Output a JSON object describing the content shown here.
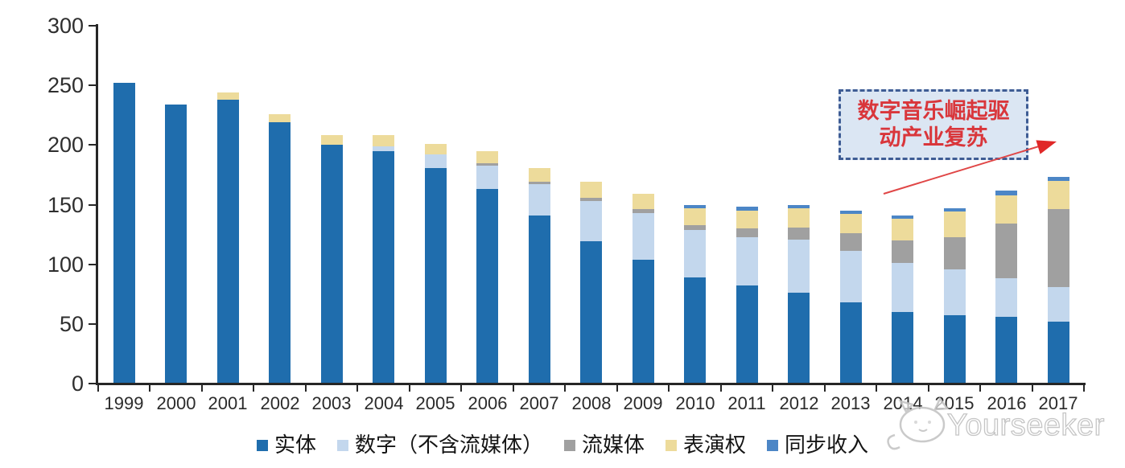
{
  "chart_data": {
    "type": "bar",
    "stacked": true,
    "title": "",
    "xlabel": "",
    "ylabel": "",
    "categories": [
      "1999",
      "2000",
      "2001",
      "2002",
      "2003",
      "2004",
      "2005",
      "2006",
      "2007",
      "2008",
      "2009",
      "2010",
      "2011",
      "2012",
      "2013",
      "2014",
      "2015",
      "2016",
      "2017"
    ],
    "series": [
      {
        "name": "实体",
        "color": "#1f6dad",
        "values": [
          252,
          234,
          238,
          219,
          200,
          195,
          181,
          163,
          141,
          119,
          104,
          89,
          82,
          76,
          68,
          60,
          57,
          56,
          52
        ]
      },
      {
        "name": "数字（不含流媒体）",
        "color": "#c3d7ed",
        "values": [
          0,
          0,
          0,
          0,
          0,
          4,
          11,
          20,
          26,
          34,
          39,
          40,
          41,
          45,
          43,
          41,
          39,
          32,
          29
        ]
      },
      {
        "name": "流媒体",
        "color": "#a0a0a0",
        "values": [
          0,
          0,
          0,
          0,
          0,
          0,
          0,
          2,
          2,
          3,
          3,
          4,
          7,
          10,
          15,
          19,
          27,
          46,
          65
        ]
      },
      {
        "name": "表演权",
        "color": "#eddb9b",
        "values": [
          0,
          0,
          6,
          7,
          8,
          9,
          9,
          10,
          12,
          13,
          13,
          14,
          15,
          16,
          16,
          18,
          21,
          24,
          24
        ]
      },
      {
        "name": "同步收入",
        "color": "#4c86c6",
        "values": [
          0,
          0,
          0,
          0,
          0,
          0,
          0,
          0,
          0,
          0,
          0,
          3,
          3,
          3,
          3,
          3,
          3,
          4,
          3
        ]
      }
    ],
    "y_ticks": [
      0,
      50,
      100,
      150,
      200,
      250,
      300
    ],
    "ylim": [
      0,
      300
    ],
    "grid": false,
    "legend_position": "bottom"
  },
  "annotation": {
    "line1": "数字音乐崛起驱",
    "line2": "动产业复苏",
    "text_color": "#d9363b",
    "box_fill": "#dbe6f3",
    "box_border": "#3e5c94",
    "arrow_color": "#e04646"
  },
  "watermark": {
    "text": "Yourseeker"
  }
}
